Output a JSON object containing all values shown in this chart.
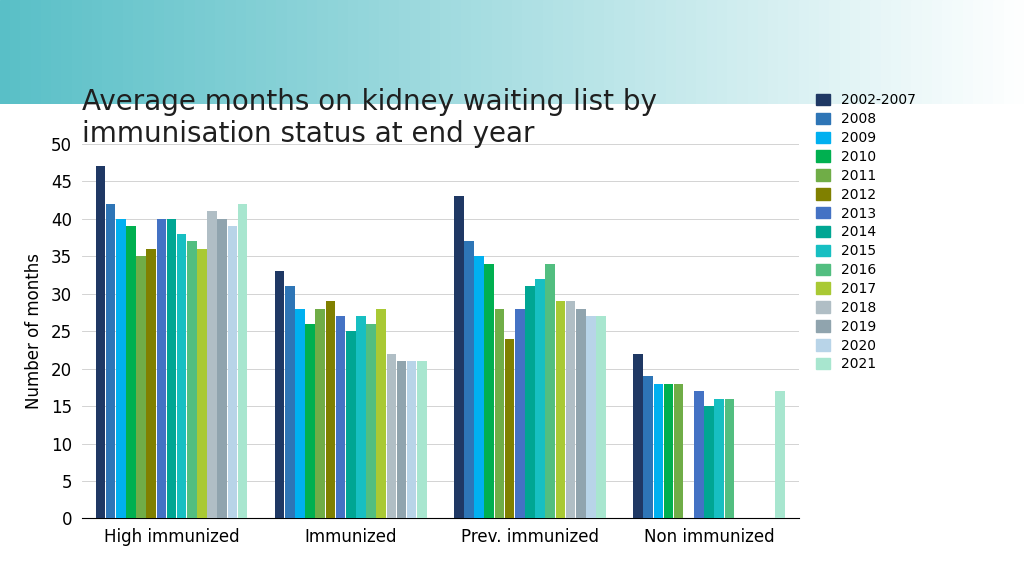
{
  "title": "Average months on kidney waiting list by\nimmunisation status at end year",
  "ylabel": "Number of months",
  "categories": [
    "High immunized",
    "Immunized",
    "Prev. immunized",
    "Non immunized"
  ],
  "series_labels": [
    "2002-2007",
    "2008",
    "2009",
    "2010",
    "2011",
    "2012",
    "2013",
    "2014",
    "2015",
    "2016",
    "2017",
    "2018",
    "2019",
    "2020",
    "2021"
  ],
  "series_colors": [
    "#1F3864",
    "#2E75B6",
    "#00B0F0",
    "#00B050",
    "#70AD47",
    "#808000",
    "#4472C4",
    "#00A693",
    "#17BFC2",
    "#52BE80",
    "#A9C934",
    "#B0BEC5",
    "#90A4AE",
    "#B8D4E8",
    "#A8E6CF"
  ],
  "values": {
    "High immunized": [
      47,
      42,
      40,
      39,
      35,
      36,
      40,
      40,
      38,
      37,
      36,
      41,
      40,
      39,
      42
    ],
    "Immunized": [
      33,
      31,
      28,
      26,
      28,
      29,
      27,
      25,
      27,
      26,
      28,
      22,
      21,
      21,
      21
    ],
    "Prev. immunized": [
      43,
      37,
      35,
      34,
      28,
      24,
      28,
      31,
      32,
      34,
      29,
      29,
      28,
      27,
      27
    ],
    "Non immunized": [
      22,
      19,
      18,
      18,
      18,
      0,
      17,
      15,
      16,
      16,
      0,
      0,
      0,
      0,
      17
    ]
  },
  "ylim": [
    0,
    50
  ],
  "yticks": [
    0,
    5,
    10,
    15,
    20,
    25,
    30,
    35,
    40,
    45,
    50
  ],
  "title_fontsize": 20,
  "axis_fontsize": 12,
  "legend_fontsize": 10,
  "header_color_top": "#5BBFBF",
  "header_color_bottom": "#FFFFFF",
  "chart_bg": "#FFFFFF"
}
